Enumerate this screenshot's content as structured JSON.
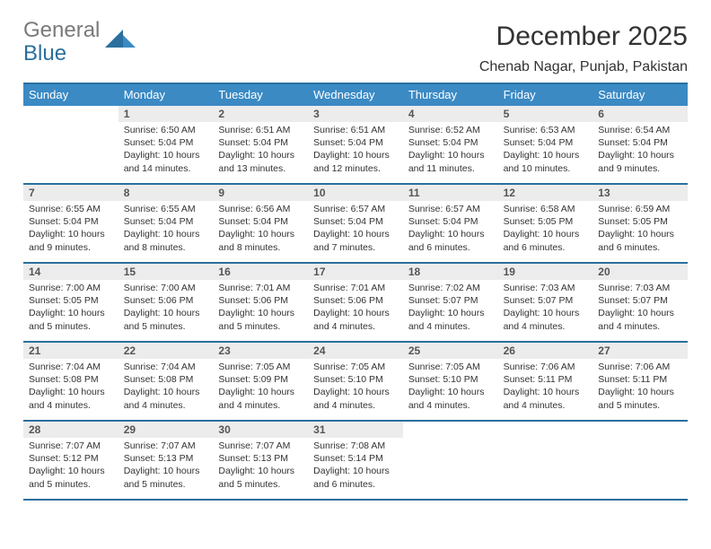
{
  "brand": {
    "word1": "General",
    "word2": "Blue",
    "mark_color": "#2a6f9e"
  },
  "header": {
    "title": "December 2025",
    "location": "Chenab Nagar, Punjab, Pakistan"
  },
  "colors": {
    "header_row": "#3b8ac4",
    "rule": "#2a6f9e",
    "stripe": "#ececec",
    "background": "#ffffff",
    "text": "#222222"
  },
  "font": {
    "family": "Arial",
    "title_size_pt": 22,
    "location_size_pt": 12,
    "dow_size_pt": 10,
    "cell_size_pt": 8
  },
  "dow": [
    "Sunday",
    "Monday",
    "Tuesday",
    "Wednesday",
    "Thursday",
    "Friday",
    "Saturday"
  ],
  "first_day_index": 1,
  "days": [
    {
      "n": 1,
      "sunrise": "6:50 AM",
      "sunset": "5:04 PM",
      "daylight": "10 hours and 14 minutes."
    },
    {
      "n": 2,
      "sunrise": "6:51 AM",
      "sunset": "5:04 PM",
      "daylight": "10 hours and 13 minutes."
    },
    {
      "n": 3,
      "sunrise": "6:51 AM",
      "sunset": "5:04 PM",
      "daylight": "10 hours and 12 minutes."
    },
    {
      "n": 4,
      "sunrise": "6:52 AM",
      "sunset": "5:04 PM",
      "daylight": "10 hours and 11 minutes."
    },
    {
      "n": 5,
      "sunrise": "6:53 AM",
      "sunset": "5:04 PM",
      "daylight": "10 hours and 10 minutes."
    },
    {
      "n": 6,
      "sunrise": "6:54 AM",
      "sunset": "5:04 PM",
      "daylight": "10 hours and 9 minutes."
    },
    {
      "n": 7,
      "sunrise": "6:55 AM",
      "sunset": "5:04 PM",
      "daylight": "10 hours and 9 minutes."
    },
    {
      "n": 8,
      "sunrise": "6:55 AM",
      "sunset": "5:04 PM",
      "daylight": "10 hours and 8 minutes."
    },
    {
      "n": 9,
      "sunrise": "6:56 AM",
      "sunset": "5:04 PM",
      "daylight": "10 hours and 8 minutes."
    },
    {
      "n": 10,
      "sunrise": "6:57 AM",
      "sunset": "5:04 PM",
      "daylight": "10 hours and 7 minutes."
    },
    {
      "n": 11,
      "sunrise": "6:57 AM",
      "sunset": "5:04 PM",
      "daylight": "10 hours and 6 minutes."
    },
    {
      "n": 12,
      "sunrise": "6:58 AM",
      "sunset": "5:05 PM",
      "daylight": "10 hours and 6 minutes."
    },
    {
      "n": 13,
      "sunrise": "6:59 AM",
      "sunset": "5:05 PM",
      "daylight": "10 hours and 6 minutes."
    },
    {
      "n": 14,
      "sunrise": "7:00 AM",
      "sunset": "5:05 PM",
      "daylight": "10 hours and 5 minutes."
    },
    {
      "n": 15,
      "sunrise": "7:00 AM",
      "sunset": "5:06 PM",
      "daylight": "10 hours and 5 minutes."
    },
    {
      "n": 16,
      "sunrise": "7:01 AM",
      "sunset": "5:06 PM",
      "daylight": "10 hours and 5 minutes."
    },
    {
      "n": 17,
      "sunrise": "7:01 AM",
      "sunset": "5:06 PM",
      "daylight": "10 hours and 4 minutes."
    },
    {
      "n": 18,
      "sunrise": "7:02 AM",
      "sunset": "5:07 PM",
      "daylight": "10 hours and 4 minutes."
    },
    {
      "n": 19,
      "sunrise": "7:03 AM",
      "sunset": "5:07 PM",
      "daylight": "10 hours and 4 minutes."
    },
    {
      "n": 20,
      "sunrise": "7:03 AM",
      "sunset": "5:07 PM",
      "daylight": "10 hours and 4 minutes."
    },
    {
      "n": 21,
      "sunrise": "7:04 AM",
      "sunset": "5:08 PM",
      "daylight": "10 hours and 4 minutes."
    },
    {
      "n": 22,
      "sunrise": "7:04 AM",
      "sunset": "5:08 PM",
      "daylight": "10 hours and 4 minutes."
    },
    {
      "n": 23,
      "sunrise": "7:05 AM",
      "sunset": "5:09 PM",
      "daylight": "10 hours and 4 minutes."
    },
    {
      "n": 24,
      "sunrise": "7:05 AM",
      "sunset": "5:10 PM",
      "daylight": "10 hours and 4 minutes."
    },
    {
      "n": 25,
      "sunrise": "7:05 AM",
      "sunset": "5:10 PM",
      "daylight": "10 hours and 4 minutes."
    },
    {
      "n": 26,
      "sunrise": "7:06 AM",
      "sunset": "5:11 PM",
      "daylight": "10 hours and 4 minutes."
    },
    {
      "n": 27,
      "sunrise": "7:06 AM",
      "sunset": "5:11 PM",
      "daylight": "10 hours and 5 minutes."
    },
    {
      "n": 28,
      "sunrise": "7:07 AM",
      "sunset": "5:12 PM",
      "daylight": "10 hours and 5 minutes."
    },
    {
      "n": 29,
      "sunrise": "7:07 AM",
      "sunset": "5:13 PM",
      "daylight": "10 hours and 5 minutes."
    },
    {
      "n": 30,
      "sunrise": "7:07 AM",
      "sunset": "5:13 PM",
      "daylight": "10 hours and 5 minutes."
    },
    {
      "n": 31,
      "sunrise": "7:08 AM",
      "sunset": "5:14 PM",
      "daylight": "10 hours and 6 minutes."
    }
  ],
  "labels": {
    "sunrise": "Sunrise:",
    "sunset": "Sunset:",
    "daylight": "Daylight:"
  }
}
